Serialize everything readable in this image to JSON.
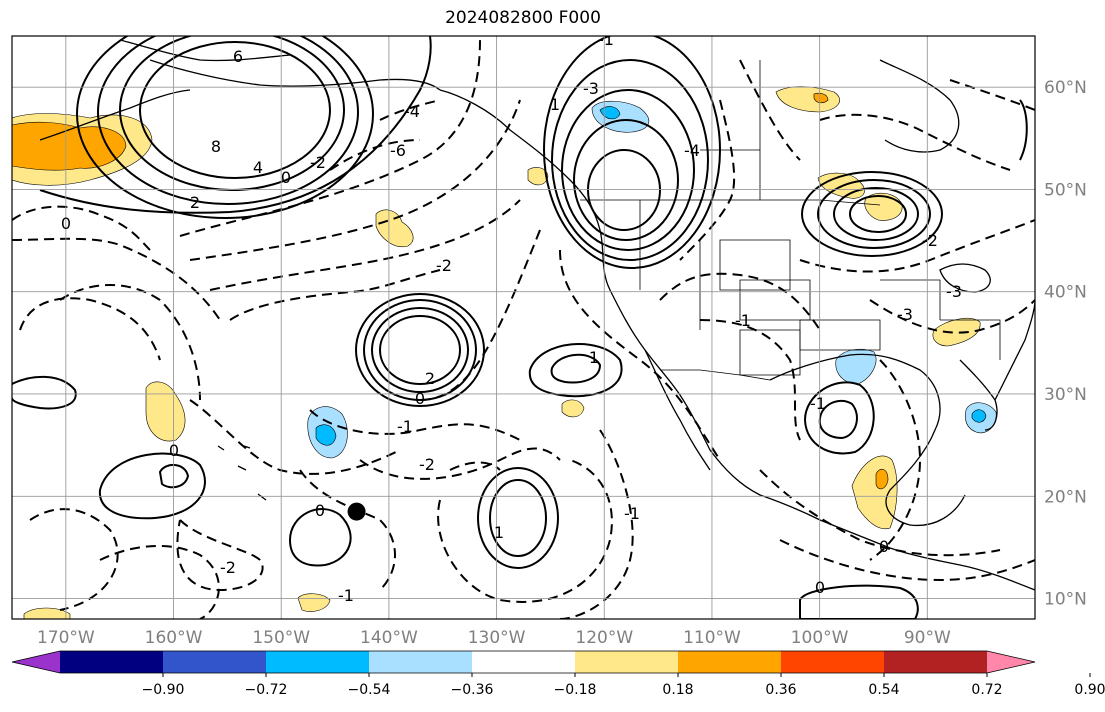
{
  "title": "2024082800 F000",
  "map": {
    "lon_range": [
      -175,
      -80
    ],
    "lat_range": [
      8,
      65
    ],
    "lon_ticks": [
      {
        "value": -170,
        "label": "170°W"
      },
      {
        "value": -160,
        "label": "160°W"
      },
      {
        "value": -150,
        "label": "150°W"
      },
      {
        "value": -140,
        "label": "140°W"
      },
      {
        "value": -130,
        "label": "130°W"
      },
      {
        "value": -120,
        "label": "120°W"
      },
      {
        "value": -110,
        "label": "110°W"
      },
      {
        "value": -100,
        "label": "100°W"
      },
      {
        "value": -90,
        "label": "90°W"
      }
    ],
    "lat_ticks": [
      {
        "value": 60,
        "label": "60°N"
      },
      {
        "value": 50,
        "label": "50°N"
      },
      {
        "value": 40,
        "label": "40°N"
      },
      {
        "value": 30,
        "label": "30°N"
      },
      {
        "value": 20,
        "label": "20°N"
      },
      {
        "value": 10,
        "label": "10°N"
      }
    ],
    "grid": true,
    "marker": {
      "lon": -143,
      "lat": 18.5,
      "color": "#000000"
    }
  },
  "colorbar": {
    "colors": [
      "#9933cc",
      "#000080",
      "#3355cc",
      "#00bbff",
      "#aae0ff",
      "#ffffff",
      "#ffe88a",
      "#ffa500",
      "#ff4500",
      "#b22222",
      "#ff88aa"
    ],
    "tick_labels": [
      "−0.90",
      "−0.72",
      "−0.54",
      "−0.36",
      "−0.18",
      "0.18",
      "0.36",
      "0.54",
      "0.72",
      "0.90"
    ],
    "extend": "both"
  },
  "contour_labels": [
    "6",
    "8",
    "4",
    "2",
    "0",
    "-2",
    "-4",
    "-6",
    "-1",
    "1",
    "-3",
    "-2",
    "2",
    "-2",
    "0",
    "-1",
    "1",
    "-2",
    "0",
    "-1",
    "-4",
    "-3",
    "-1",
    "0",
    "1",
    "-1",
    "0",
    "0",
    "-2",
    "-1",
    "-3",
    "0"
  ]
}
